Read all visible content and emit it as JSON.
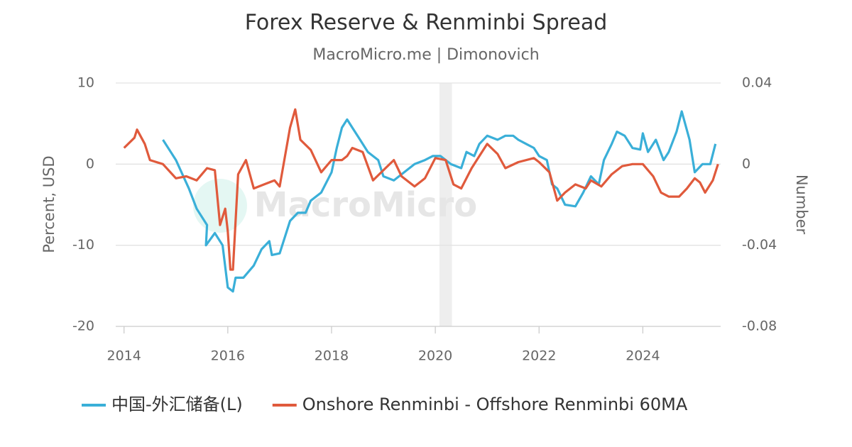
{
  "chart_data": {
    "type": "line",
    "title": "Forex Reserve & Renminbi Spread",
    "subtitle": "MacroMicro.me | Dimonovich",
    "watermark": "MacroMicro",
    "y_label": "Percent, USD",
    "y2_label": "Number",
    "xlim": [
      2013.84,
      2025.5
    ],
    "xticks": [
      2014,
      2016,
      2018,
      2020,
      2022,
      2024
    ],
    "ylim": [
      -20,
      10
    ],
    "yticks": [
      -20,
      -10,
      0,
      10
    ],
    "y2lim": [
      -0.08,
      0.04
    ],
    "y2ticks": [
      -0.08,
      -0.04,
      0,
      0.04
    ],
    "grid": true,
    "legend": "bottom",
    "band": [
      2020.08,
      2020.32
    ],
    "series": [
      {
        "name": "中国-外汇储备(L)",
        "color": "#3aafd8",
        "x": [
          2014.75,
          2014.9,
          2015.0,
          2015.25,
          2015.4,
          2015.6,
          2015.58,
          2015.75,
          2015.9,
          2016.0,
          2016.1,
          2016.15,
          2016.3,
          2016.5,
          2016.65,
          2016.8,
          2016.85,
          2017.0,
          2017.2,
          2017.35,
          2017.5,
          2017.6,
          2017.8,
          2018.0,
          2018.1,
          2018.2,
          2018.3,
          2018.4,
          2018.55,
          2018.7,
          2018.9,
          2019.0,
          2019.2,
          2019.4,
          2019.6,
          2019.8,
          2019.95,
          2020.1,
          2020.3,
          2020.5,
          2020.6,
          2020.75,
          2020.85,
          2021.0,
          2021.2,
          2021.35,
          2021.5,
          2021.6,
          2021.75,
          2021.9,
          2022.0,
          2022.15,
          2022.25,
          2022.35,
          2022.5,
          2022.7,
          2022.85,
          2023.0,
          2023.15,
          2023.25,
          2023.4,
          2023.5,
          2023.65,
          2023.8,
          2023.95,
          2024.0,
          2024.1,
          2024.25,
          2024.4,
          2024.5,
          2024.65,
          2024.75,
          2024.9,
          2025.0,
          2025.15,
          2025.3,
          2025.4
        ],
        "values": [
          3,
          1.5,
          0.5,
          -3,
          -5.5,
          -7.5,
          -10,
          -8.5,
          -10,
          -15.2,
          -15.7,
          -14,
          -14,
          -12.5,
          -10.5,
          -9.5,
          -11.2,
          -11,
          -7,
          -6,
          -6,
          -4.5,
          -3.5,
          -1,
          2,
          4.5,
          5.5,
          4.5,
          3,
          1.5,
          0.5,
          -1.5,
          -2,
          -1,
          0,
          0.5,
          1,
          1,
          0,
          -0.5,
          1.5,
          1,
          2.5,
          3.5,
          3,
          3.5,
          3.5,
          3,
          2.5,
          2,
          1,
          0.5,
          -2.5,
          -3,
          -5,
          -5.2,
          -3.5,
          -1.5,
          -2.5,
          0.5,
          2.5,
          4,
          3.5,
          2,
          1.8,
          3.8,
          1.5,
          3,
          0.5,
          1.5,
          4,
          6.5,
          3,
          -1,
          0,
          0,
          2.5
        ]
      },
      {
        "name": "Onshore Renminbi - Offshore Renminbi 60MA",
        "color": "#e05a3c",
        "axis": "y2",
        "x": [
          2014.0,
          2014.2,
          2014.25,
          2014.4,
          2014.5,
          2014.75,
          2015.0,
          2015.2,
          2015.4,
          2015.6,
          2015.75,
          2015.85,
          2015.95,
          2016.0,
          2016.05,
          2016.1,
          2016.2,
          2016.35,
          2016.5,
          2016.7,
          2016.9,
          2017.0,
          2017.2,
          2017.3,
          2017.4,
          2017.6,
          2017.8,
          2018.0,
          2018.2,
          2018.3,
          2018.4,
          2018.6,
          2018.8,
          2019.0,
          2019.2,
          2019.35,
          2019.6,
          2019.8,
          2020.0,
          2020.2,
          2020.35,
          2020.5,
          2020.7,
          2020.85,
          2021.0,
          2021.2,
          2021.35,
          2021.6,
          2021.9,
          2022.0,
          2022.2,
          2022.35,
          2022.5,
          2022.7,
          2022.9,
          2023.0,
          2023.2,
          2023.4,
          2023.6,
          2023.8,
          2024.0,
          2024.2,
          2024.35,
          2024.5,
          2024.7,
          2024.85,
          2025.0,
          2025.1,
          2025.2,
          2025.35,
          2025.45
        ],
        "values": [
          0.008,
          0.013,
          0.017,
          0.01,
          0.002,
          0.0,
          -0.007,
          -0.006,
          -0.008,
          -0.002,
          -0.003,
          -0.03,
          -0.022,
          -0.033,
          -0.052,
          -0.052,
          -0.005,
          0.002,
          -0.012,
          -0.01,
          -0.008,
          -0.011,
          0.018,
          0.027,
          0.012,
          0.007,
          -0.004,
          0.002,
          0.002,
          0.004,
          0.008,
          0.006,
          -0.008,
          -0.003,
          0.002,
          -0.006,
          -0.011,
          -0.007,
          0.003,
          0.002,
          -0.01,
          -0.012,
          -0.002,
          0.004,
          0.01,
          0.005,
          -0.002,
          0.001,
          0.003,
          0.001,
          -0.004,
          -0.018,
          -0.014,
          -0.01,
          -0.012,
          -0.008,
          -0.011,
          -0.005,
          -0.001,
          0.0,
          0.0,
          -0.006,
          -0.014,
          -0.016,
          -0.016,
          -0.012,
          -0.007,
          -0.009,
          -0.014,
          -0.008,
          0.0
        ]
      }
    ]
  }
}
